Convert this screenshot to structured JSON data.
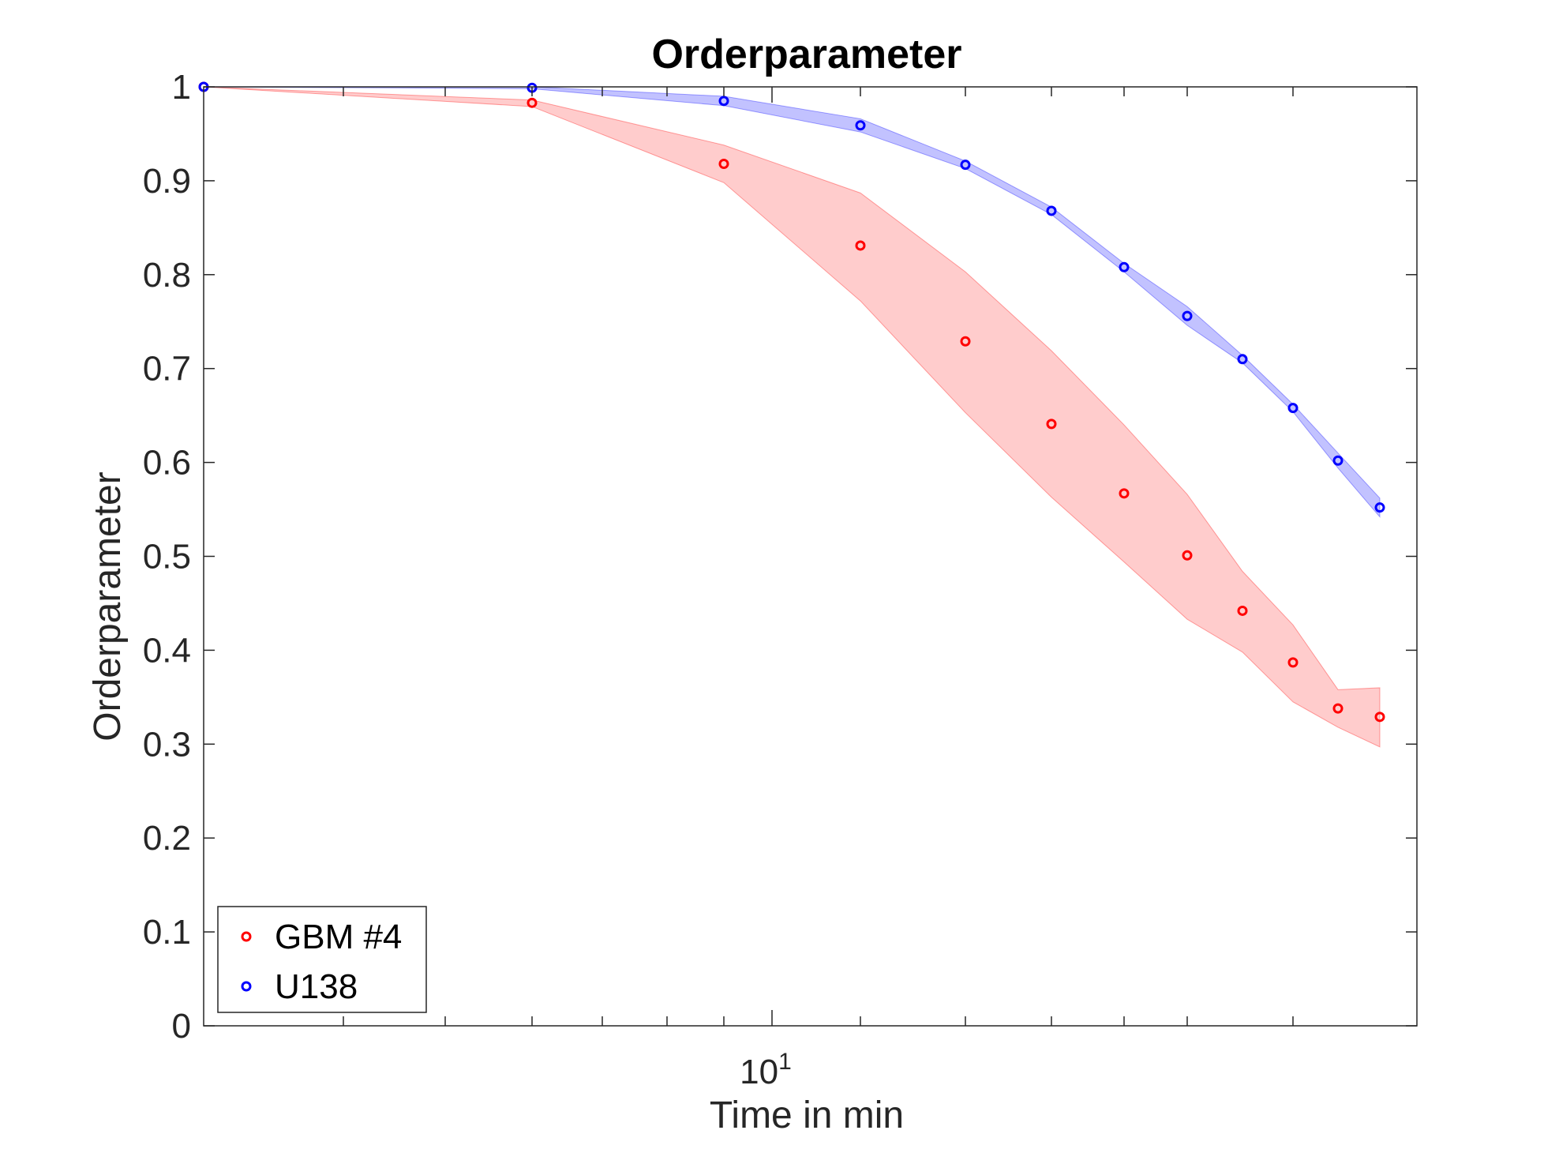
{
  "chart_data": {
    "type": "scatter",
    "title": "Orderparameter",
    "xlabel": "Time in min",
    "ylabel": "Orderparameter",
    "xscale": "log",
    "xlim": [
      2.5,
      50
    ],
    "ylim": [
      0,
      1
    ],
    "x_tick_label": {
      "base": "10",
      "exponent": "1"
    },
    "y_ticks": [
      "0",
      "0.1",
      "0.2",
      "0.3",
      "0.4",
      "0.5",
      "0.6",
      "0.7",
      "0.8",
      "0.9",
      "1"
    ],
    "y_tick_values": [
      0,
      0.1,
      0.2,
      0.3,
      0.4,
      0.5,
      0.6,
      0.7,
      0.8,
      0.9,
      1
    ],
    "grid": false,
    "legend_location": "bottom-left",
    "x": [
      2.5,
      5,
      7.5,
      10,
      12.5,
      15,
      17.5,
      20,
      22.5,
      25,
      27.5,
      30,
      32.5
    ],
    "series": [
      {
        "name": "GBM #4",
        "color": "#ff0000",
        "values": [
          1.0,
          0.983,
          0.918,
          0.831,
          0.729,
          0.641,
          0.567,
          0.501,
          0.442,
          0.387,
          0.338,
          0.329
        ],
        "x_index_start": 0,
        "x_values": [
          2.5,
          5,
          7.5,
          10,
          12.5,
          15,
          17.5,
          20,
          22.5,
          25,
          27.5,
          30
        ],
        "band_upper": [
          1.0,
          0.986,
          0.938,
          0.887,
          0.803,
          0.719,
          0.64,
          0.566,
          0.484,
          0.427,
          0.358,
          0.36
        ],
        "band_lower": [
          1.0,
          0.979,
          0.898,
          0.772,
          0.653,
          0.563,
          0.494,
          0.433,
          0.398,
          0.345,
          0.318,
          0.297
        ],
        "band_color": "#ff9999"
      },
      {
        "name": "U138",
        "color": "#0000ff",
        "values": [
          1.0,
          0.999,
          0.985,
          0.959,
          0.917,
          0.868,
          0.808,
          0.756,
          0.71,
          0.658,
          0.602,
          0.552
        ],
        "x_values": [
          2.5,
          5,
          7.5,
          10,
          12.5,
          15,
          17.5,
          20,
          22.5,
          25,
          27.5,
          30
        ],
        "band_upper": [
          1.0,
          1.0,
          0.99,
          0.966,
          0.921,
          0.872,
          0.812,
          0.766,
          0.714,
          0.662,
          0.61,
          0.562
        ],
        "band_lower": [
          1.0,
          0.998,
          0.98,
          0.952,
          0.913,
          0.864,
          0.803,
          0.746,
          0.706,
          0.654,
          0.594,
          0.542
        ],
        "band_color": "#9999ff"
      }
    ]
  }
}
